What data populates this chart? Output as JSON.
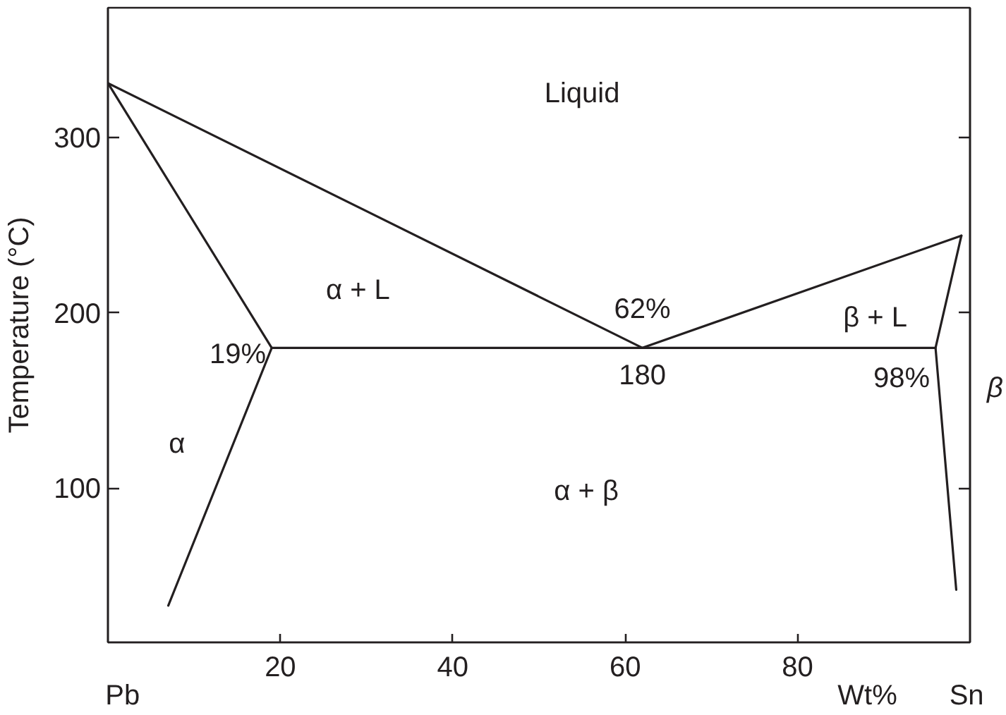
{
  "chart_data": {
    "type": "line",
    "xlabel": "Wt%",
    "ylabel": "Temperature (°C)",
    "xlim": [
      0,
      100
    ],
    "ylim": [
      12,
      374
    ],
    "xticks": [
      20,
      40,
      60,
      80
    ],
    "yticks": [
      100,
      200,
      300
    ],
    "series": [
      {
        "color": "#231f20",
        "x": [
          0,
          62,
          99
        ],
        "values": [
          331,
          180,
          244
        ]
      },
      {
        "color": "#231f20",
        "x": [
          0,
          19,
          7
        ],
        "values": [
          331,
          180,
          33
        ]
      },
      {
        "color": "#231f20",
        "x": [
          19,
          96
        ],
        "values": [
          180,
          180
        ]
      },
      {
        "color": "#231f20",
        "x": [
          99,
          96,
          98.4
        ],
        "values": [
          244,
          180,
          42
        ]
      }
    ],
    "annotations": [
      "Liquid",
      "α + L",
      {
        "text": "62%",
        "x": 62,
        "y": 180
      },
      "β + L",
      {
        "text": "19%",
        "x": 19,
        "y": 180
      },
      {
        "text": "180",
        "x": 62,
        "y": 180
      },
      {
        "text": "98%",
        "x": 96,
        "y": 180
      },
      "β",
      "α",
      "α + β",
      "Pb",
      "Sn"
    ]
  }
}
